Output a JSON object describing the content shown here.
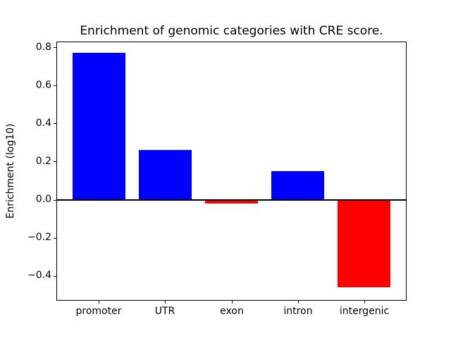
{
  "chart_data": {
    "type": "bar",
    "title": "Enrichment of genomic categories with CRE score.",
    "xlabel": "",
    "ylabel": "Enrichment (log10)",
    "categories": [
      "promoter",
      "UTR",
      "exon",
      "intron",
      "intergenic"
    ],
    "values": [
      0.77,
      0.26,
      -0.02,
      0.15,
      -0.46
    ],
    "bar_colors": [
      "#0000ff",
      "#0000ff",
      "#ff0000",
      "#0000ff",
      "#ff0000"
    ],
    "positive_color": "#0000ff",
    "negative_color": "#ff0000",
    "yticks": [
      0.8,
      0.6,
      0.4,
      0.2,
      0.0,
      -0.2,
      -0.4
    ],
    "ylim": [
      -0.53,
      0.83
    ],
    "xlim": [
      -0.64,
      4.64
    ],
    "bar_width": 0.8,
    "grid": false,
    "zero_line": true,
    "legend_position": "none",
    "axis_color": "#000000",
    "background_color": "#ffffff"
  }
}
